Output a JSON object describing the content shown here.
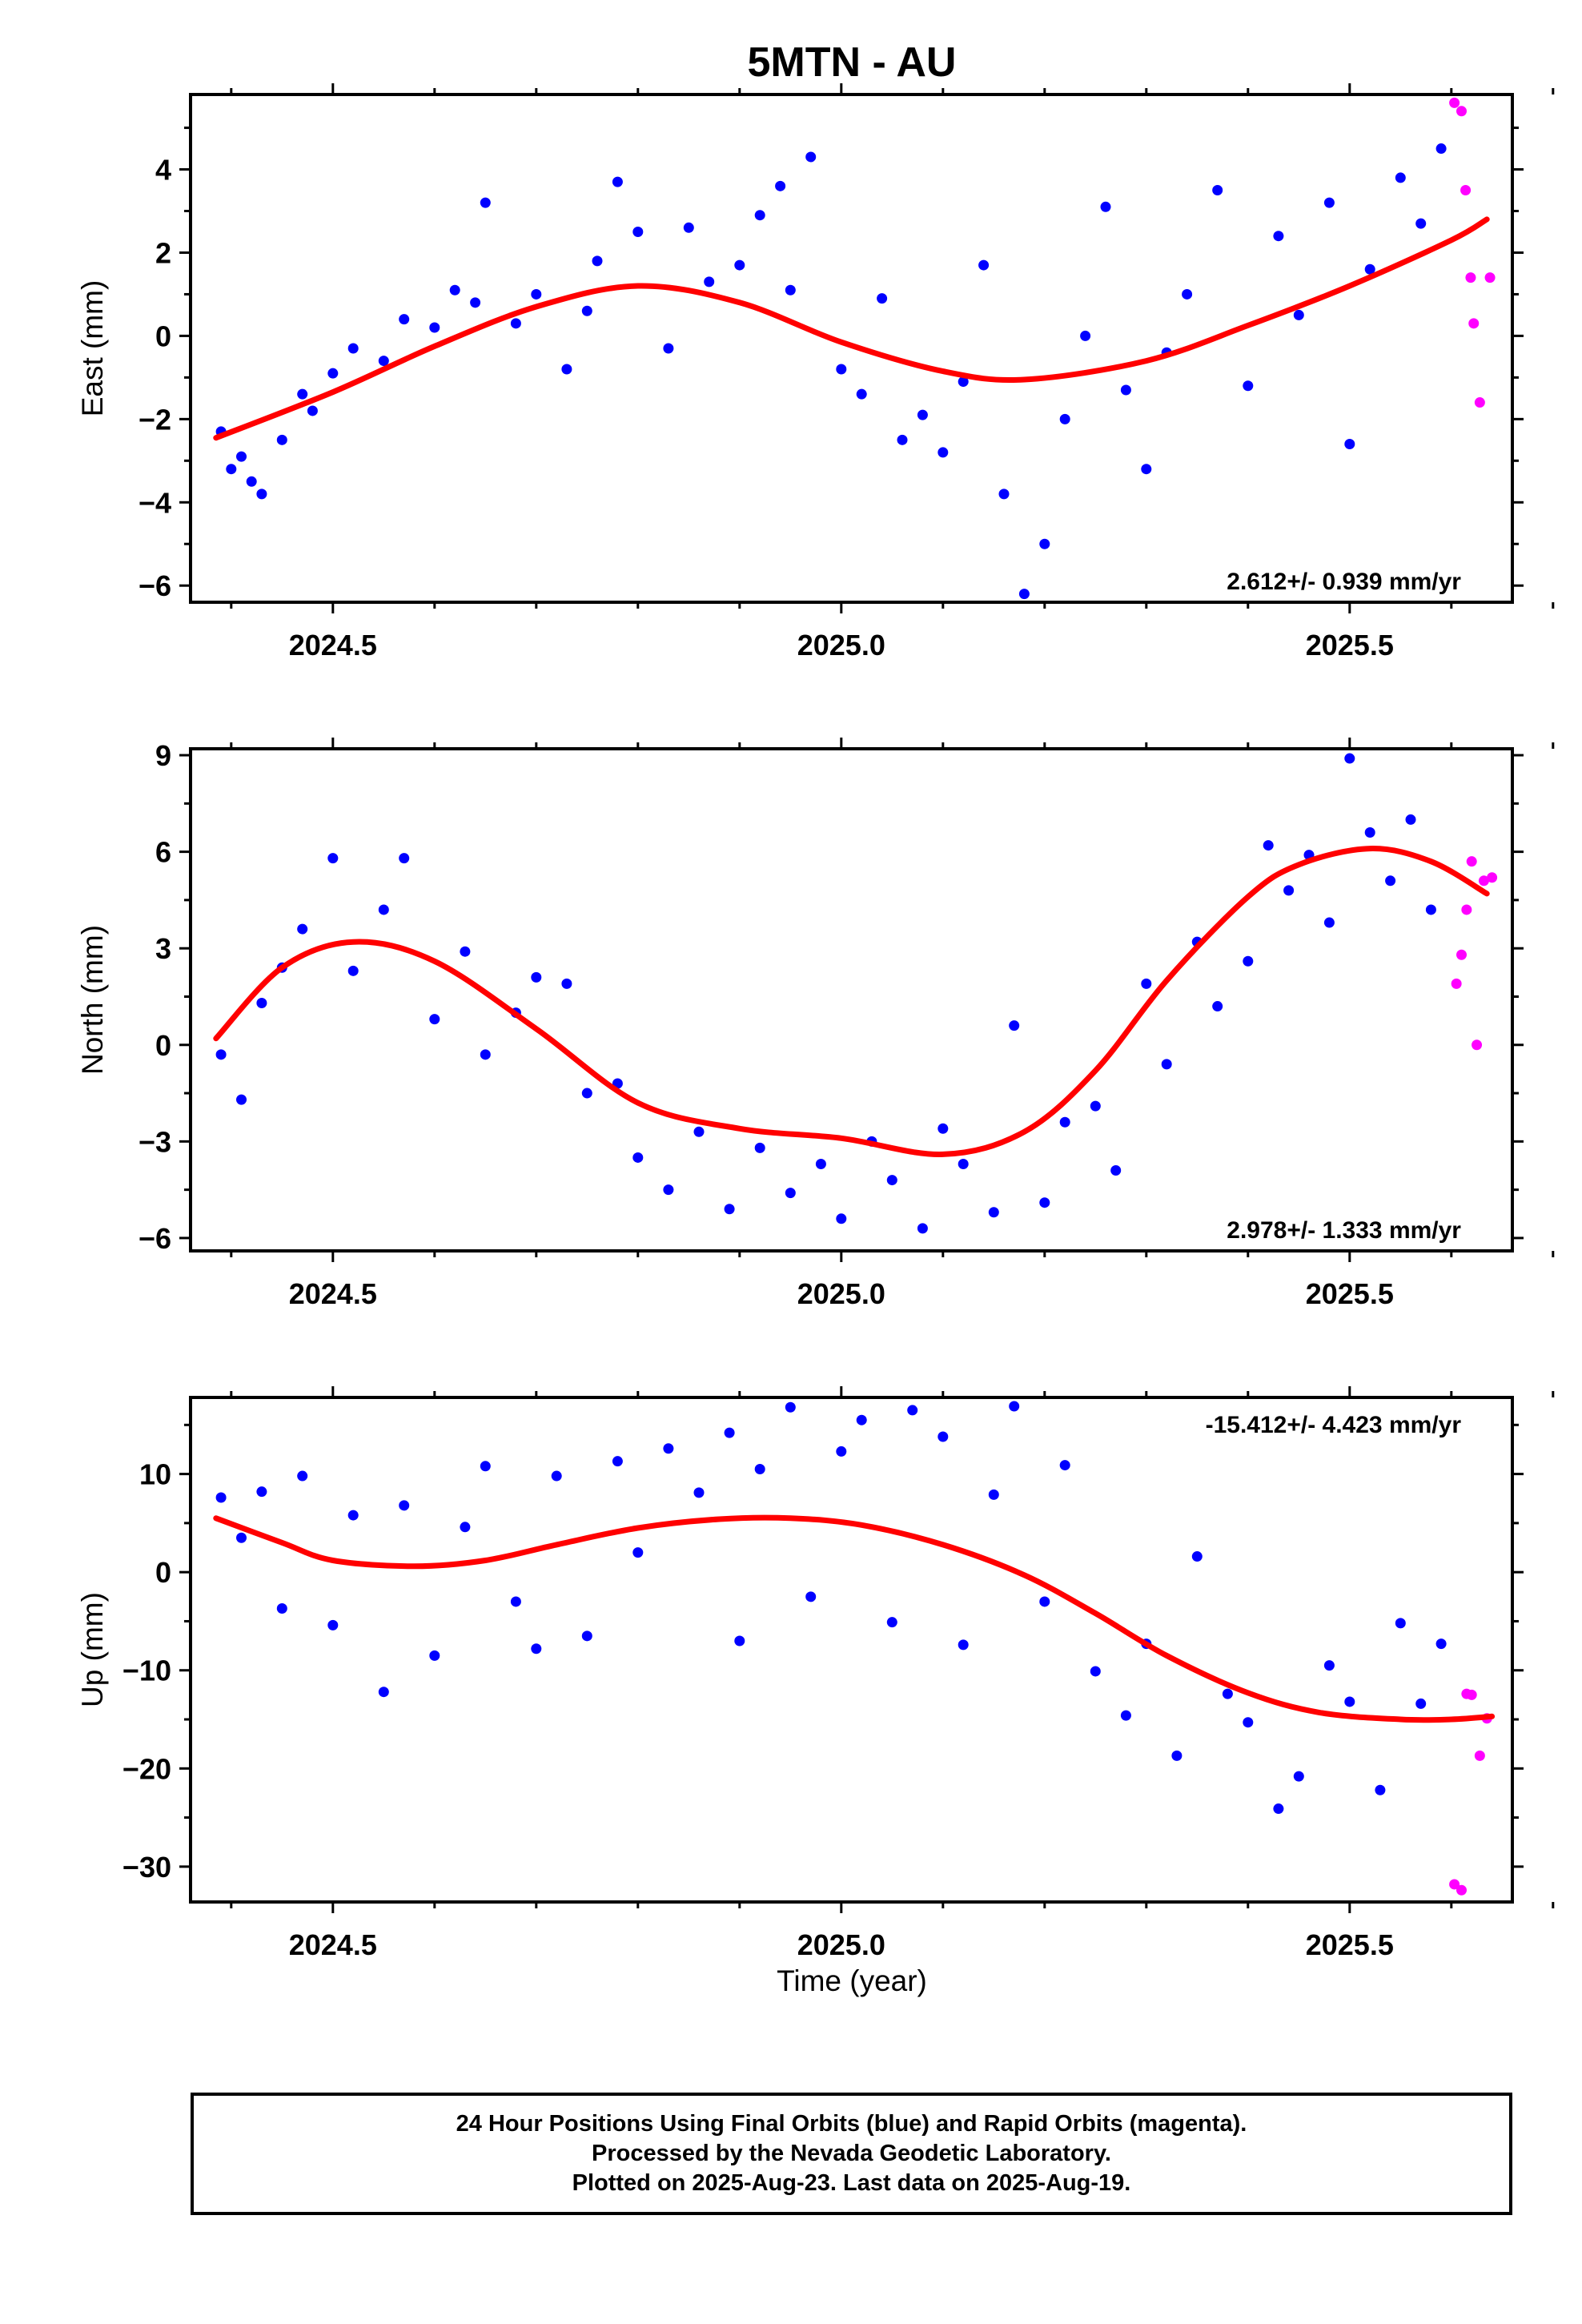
{
  "title": "5MTN - AU",
  "xlabel": "Time (year)",
  "colors": {
    "final": "#0000ff",
    "rapid": "#ff00ff",
    "fit": "#ff0000",
    "frame": "#000000"
  },
  "caption": [
    "24 Hour Positions Using Final Orbits (blue) and Rapid Orbits (magenta).",
    "Processed by the Nevada Geodetic Laboratory.",
    "Plotted on 2025-Aug-23. Last data on 2025-Aug-19."
  ],
  "chart_data": [
    {
      "type": "scatter",
      "ylabel": "East (mm)",
      "rate_label": "2.612+/- 0.939 mm/yr",
      "rate_position": "bottom-right",
      "xlim": [
        2024.36,
        2025.66
      ],
      "ylim": [
        -6.4,
        5.8
      ],
      "x_ticks": [
        "2024.5",
        "2025.0",
        "2025.5"
      ],
      "y_ticks": [
        "4",
        "2",
        "0",
        "−2",
        "−4",
        "−6"
      ],
      "y_tick_values": [
        4,
        2,
        0,
        -2,
        -4,
        -6
      ],
      "fit": {
        "x": [
          2024.385,
          2024.5,
          2024.6,
          2024.7,
          2024.8,
          2024.9,
          2025.0,
          2025.1,
          2025.18,
          2025.3,
          2025.4,
          2025.5,
          2025.6,
          2025.635
        ],
        "y": [
          -2.45,
          -1.35,
          -0.25,
          0.7,
          1.2,
          0.8,
          -0.15,
          -0.85,
          -1.05,
          -0.6,
          0.25,
          1.2,
          2.3,
          2.8
        ]
      },
      "final_points": {
        "x": [
          2024.39,
          2024.4,
          2024.41,
          2024.42,
          2024.43,
          2024.45,
          2024.47,
          2024.48,
          2024.5,
          2024.52,
          2024.55,
          2024.57,
          2024.6,
          2024.62,
          2024.64,
          2024.65,
          2024.68,
          2024.7,
          2024.73,
          2024.75,
          2024.76,
          2024.78,
          2024.8,
          2024.83,
          2024.85,
          2024.87,
          2024.9,
          2024.92,
          2024.94,
          2024.95,
          2024.97,
          2025.0,
          2025.02,
          2025.04,
          2025.06,
          2025.08,
          2025.1,
          2025.12,
          2025.14,
          2025.16,
          2025.18,
          2025.2,
          2025.22,
          2025.24,
          2025.26,
          2025.28,
          2025.3,
          2025.32,
          2025.34,
          2025.37,
          2025.4,
          2025.43,
          2025.45,
          2025.48,
          2025.5,
          2025.52,
          2025.55,
          2025.57,
          2025.59
        ],
        "y": [
          -2.3,
          -3.2,
          -2.9,
          -3.5,
          -3.8,
          -2.5,
          -1.4,
          -1.8,
          -0.9,
          -0.3,
          -0.6,
          0.4,
          0.2,
          1.1,
          0.8,
          3.2,
          0.3,
          1.0,
          -0.8,
          0.6,
          1.8,
          3.7,
          2.5,
          -0.3,
          2.6,
          1.3,
          1.7,
          2.9,
          3.6,
          1.1,
          4.3,
          -0.8,
          -1.4,
          0.9,
          -2.5,
          -1.9,
          -2.8,
          -1.1,
          1.7,
          -3.8,
          -6.2,
          -5.0,
          -2.0,
          0.0,
          3.1,
          -1.3,
          -3.2,
          -0.4,
          1.0,
          3.5,
          -1.2,
          2.4,
          0.5,
          3.2,
          -2.6,
          1.6,
          3.8,
          2.7,
          4.5
        ]
      },
      "rapid_points": {
        "x": [
          2025.603,
          2025.61,
          2025.614,
          2025.619,
          2025.622,
          2025.628,
          2025.638
        ],
        "y": [
          5.6,
          5.4,
          3.5,
          1.4,
          0.3,
          -1.6,
          1.4
        ]
      }
    },
    {
      "type": "scatter",
      "ylabel": "North (mm)",
      "rate_label": "2.978+/- 1.333 mm/yr",
      "rate_position": "bottom-right",
      "xlim": [
        2024.36,
        2025.66
      ],
      "ylim": [
        -6.4,
        9.2
      ],
      "x_ticks": [
        "2024.5",
        "2025.0",
        "2025.5"
      ],
      "y_ticks": [
        "9",
        "6",
        "3",
        "0",
        "−3",
        "−6"
      ],
      "y_tick_values": [
        9,
        6,
        3,
        0,
        -3,
        -6
      ],
      "fit": {
        "x": [
          2024.385,
          2024.45,
          2024.52,
          2024.6,
          2024.7,
          2024.8,
          2024.9,
          2025.0,
          2025.1,
          2025.18,
          2025.25,
          2025.32,
          2025.4,
          2025.45,
          2025.52,
          2025.58,
          2025.635
        ],
        "y": [
          0.2,
          2.4,
          3.2,
          2.6,
          0.5,
          -1.8,
          -2.6,
          -2.9,
          -3.4,
          -2.7,
          -0.8,
          2.0,
          4.6,
          5.6,
          6.1,
          5.7,
          4.7
        ]
      },
      "final_points": {
        "x": [
          2024.39,
          2024.41,
          2024.43,
          2024.45,
          2024.47,
          2024.5,
          2024.52,
          2024.55,
          2024.57,
          2024.6,
          2024.63,
          2024.65,
          2024.68,
          2024.7,
          2024.73,
          2024.75,
          2024.78,
          2024.8,
          2024.83,
          2024.86,
          2024.89,
          2024.92,
          2024.95,
          2024.98,
          2025.0,
          2025.03,
          2025.05,
          2025.08,
          2025.1,
          2025.12,
          2025.15,
          2025.17,
          2025.2,
          2025.22,
          2025.25,
          2025.27,
          2025.3,
          2025.32,
          2025.35,
          2025.37,
          2025.4,
          2025.42,
          2025.44,
          2025.46,
          2025.48,
          2025.5,
          2025.52,
          2025.54,
          2025.56,
          2025.58
        ],
        "y": [
          -0.3,
          -1.7,
          1.3,
          2.4,
          3.6,
          5.8,
          2.3,
          4.2,
          5.8,
          0.8,
          2.9,
          -0.3,
          1.0,
          2.1,
          1.9,
          -1.5,
          -1.2,
          -3.5,
          -4.5,
          -2.7,
          -5.1,
          -3.2,
          -4.6,
          -3.7,
          -5.4,
          -3.0,
          -4.2,
          -5.7,
          -2.6,
          -3.7,
          -5.2,
          0.6,
          -4.9,
          -2.4,
          -1.9,
          -3.9,
          1.9,
          -0.6,
          3.2,
          1.2,
          2.6,
          6.2,
          4.8,
          5.9,
          3.8,
          8.9,
          6.6,
          5.1,
          7.0,
          4.2
        ]
      },
      "rapid_points": {
        "x": [
          2025.605,
          2025.61,
          2025.615,
          2025.62,
          2025.625,
          2025.632,
          2025.64
        ],
        "y": [
          1.9,
          2.8,
          4.2,
          5.7,
          0.0,
          5.1,
          5.2
        ]
      }
    },
    {
      "type": "scatter",
      "ylabel": "Up (mm)",
      "rate_label": "-15.412+/- 4.423 mm/yr",
      "rate_position": "top-right",
      "xlim": [
        2024.36,
        2025.66
      ],
      "ylim": [
        -33.6,
        17.8
      ],
      "x_ticks": [
        "2024.5",
        "2025.0",
        "2025.5"
      ],
      "y_ticks": [
        "10",
        "0",
        "−10",
        "−20",
        "−30"
      ],
      "y_tick_values": [
        10,
        0,
        -10,
        -20,
        -30
      ],
      "fit": {
        "x": [
          2024.385,
          2024.45,
          2024.5,
          2024.58,
          2024.65,
          2024.72,
          2024.8,
          2024.88,
          2024.95,
          2025.02,
          2025.1,
          2025.18,
          2025.25,
          2025.32,
          2025.4,
          2025.47,
          2025.55,
          2025.6,
          2025.64
        ],
        "y": [
          5.5,
          3.0,
          1.2,
          0.6,
          1.2,
          2.8,
          4.5,
          5.4,
          5.5,
          4.8,
          2.8,
          -0.3,
          -4.2,
          -8.5,
          -12.3,
          -14.3,
          -15.0,
          -15.0,
          -14.7
        ]
      },
      "final_points": {
        "x": [
          2024.39,
          2024.41,
          2024.43,
          2024.45,
          2024.47,
          2024.5,
          2024.52,
          2024.55,
          2024.57,
          2024.6,
          2024.63,
          2024.65,
          2024.68,
          2024.7,
          2024.72,
          2024.75,
          2024.78,
          2024.8,
          2024.83,
          2024.86,
          2024.89,
          2024.9,
          2024.92,
          2024.95,
          2024.97,
          2025.0,
          2025.02,
          2025.05,
          2025.07,
          2025.1,
          2025.12,
          2025.15,
          2025.17,
          2025.2,
          2025.22,
          2025.25,
          2025.28,
          2025.3,
          2025.33,
          2025.35,
          2025.38,
          2025.4,
          2025.43,
          2025.45,
          2025.48,
          2025.5,
          2025.53,
          2025.55,
          2025.57,
          2025.59
        ],
        "y": [
          7.6,
          3.5,
          8.2,
          -3.7,
          9.8,
          -5.4,
          5.8,
          -12.2,
          6.8,
          -8.5,
          4.6,
          10.8,
          -3.0,
          -7.8,
          9.8,
          -6.5,
          11.3,
          2.0,
          12.6,
          8.1,
          14.2,
          -7.0,
          10.5,
          16.8,
          -2.5,
          12.3,
          15.5,
          -5.1,
          16.5,
          13.8,
          -7.4,
          7.9,
          16.9,
          -3.0,
          10.9,
          -10.1,
          -14.6,
          -7.3,
          -18.7,
          1.6,
          -12.4,
          -15.3,
          -24.1,
          -20.8,
          -9.5,
          -13.2,
          -22.2,
          -5.2,
          -13.4,
          -7.3
        ]
      },
      "rapid_points": {
        "x": [
          2025.603,
          2025.61,
          2025.615,
          2025.62,
          2025.628,
          2025.635
        ],
        "y": [
          -31.8,
          -32.4,
          -12.4,
          -12.5,
          -18.7,
          -14.9
        ]
      }
    }
  ]
}
